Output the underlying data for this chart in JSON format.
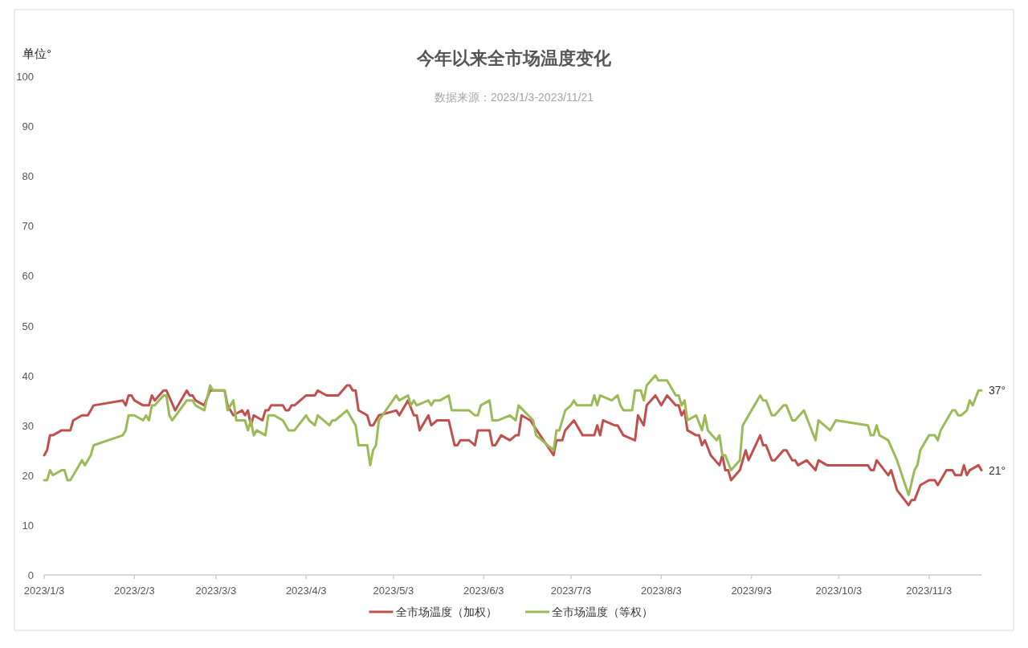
{
  "chart_data": {
    "type": "line",
    "title": "今年以来全市场温度变化",
    "subtitle": "数据来源：2023/1/3-2023/11/21",
    "ylabel": "单位°",
    "xlim": [
      "2023-01-03",
      "2023-11-21"
    ],
    "xticks": [
      {
        "value": "2023-01-03",
        "label": "2023/1/3"
      },
      {
        "value": "2023-02-03",
        "label": "2023/2/3"
      },
      {
        "value": "2023-03-03",
        "label": "2023/3/3"
      },
      {
        "value": "2023-04-03",
        "label": "2023/4/3"
      },
      {
        "value": "2023-05-03",
        "label": "2023/5/3"
      },
      {
        "value": "2023-06-03",
        "label": "2023/6/3"
      },
      {
        "value": "2023-07-03",
        "label": "2023/7/3"
      },
      {
        "value": "2023-08-03",
        "label": "2023/8/3"
      },
      {
        "value": "2023-09-03",
        "label": "2023/9/3"
      },
      {
        "value": "2023-10-03",
        "label": "2023/10/3"
      },
      {
        "value": "2023-11-03",
        "label": "2023/11/3"
      }
    ],
    "ylim": [
      0,
      100
    ],
    "yticks": [
      0,
      10,
      20,
      30,
      40,
      50,
      60,
      70,
      80,
      90,
      100
    ],
    "legend": "bottom",
    "annotations": [
      {
        "text": "37°",
        "x": "2023-11-21",
        "y": 37
      },
      {
        "text": "21°",
        "x": "2023-11-21",
        "y": 21
      }
    ],
    "series": [
      {
        "name": "全市场温度（加权）",
        "color": "#c0504d",
        "x": [
          "2023-01-03",
          "2023-01-04",
          "2023-01-05",
          "2023-01-06",
          "2023-01-09",
          "2023-01-12",
          "2023-01-13",
          "2023-01-16",
          "2023-01-18",
          "2023-01-20",
          "2023-01-30",
          "2023-01-31",
          "2023-02-01",
          "2023-02-02",
          "2023-02-03",
          "2023-02-06",
          "2023-02-08",
          "2023-02-09",
          "2023-02-10",
          "2023-02-13",
          "2023-02-14",
          "2023-02-17",
          "2023-02-21",
          "2023-02-22",
          "2023-02-23",
          "2023-02-24",
          "2023-02-27",
          "2023-03-01",
          "2023-03-06",
          "2023-03-07",
          "2023-03-09",
          "2023-03-12",
          "2023-03-13",
          "2023-03-14",
          "2023-03-15",
          "2023-03-16",
          "2023-03-19",
          "2023-03-20",
          "2023-03-21",
          "2023-03-22",
          "2023-03-26",
          "2023-03-27",
          "2023-03-28",
          "2023-03-29",
          "2023-03-30",
          "2023-04-03",
          "2023-04-06",
          "2023-04-07",
          "2023-04-10",
          "2023-04-14",
          "2023-04-17",
          "2023-04-18",
          "2023-04-19",
          "2023-04-20",
          "2023-04-21",
          "2023-04-24",
          "2023-04-25",
          "2023-04-26",
          "2023-04-28",
          "2023-05-04",
          "2023-05-05",
          "2023-05-08",
          "2023-05-10",
          "2023-05-11",
          "2023-05-12",
          "2023-05-15",
          "2023-05-16",
          "2023-05-18",
          "2023-05-22",
          "2023-05-24",
          "2023-05-25",
          "2023-05-26",
          "2023-05-29",
          "2023-05-31",
          "2023-06-01",
          "2023-06-05",
          "2023-06-06",
          "2023-06-07",
          "2023-06-09",
          "2023-06-12",
          "2023-06-14",
          "2023-06-15",
          "2023-06-16",
          "2023-06-19",
          "2023-06-27",
          "2023-06-28",
          "2023-06-30",
          "2023-07-01",
          "2023-07-04",
          "2023-07-07",
          "2023-07-11",
          "2023-07-12",
          "2023-07-13",
          "2023-07-14",
          "2023-07-18",
          "2023-07-19",
          "2023-07-21",
          "2023-07-25",
          "2023-07-26",
          "2023-07-28",
          "2023-07-29",
          "2023-08-01",
          "2023-08-03",
          "2023-08-05",
          "2023-08-08",
          "2023-08-09",
          "2023-08-10",
          "2023-08-11",
          "2023-08-12",
          "2023-08-15",
          "2023-08-16",
          "2023-08-17",
          "2023-08-18",
          "2023-08-20",
          "2023-08-23",
          "2023-08-24",
          "2023-08-25",
          "2023-08-26",
          "2023-08-27",
          "2023-08-30",
          "2023-09-01",
          "2023-09-02",
          "2023-09-06",
          "2023-09-07",
          "2023-09-08",
          "2023-09-10",
          "2023-09-11",
          "2023-09-14",
          "2023-09-15",
          "2023-09-17",
          "2023-09-18",
          "2023-09-19",
          "2023-09-22",
          "2023-09-25",
          "2023-09-26",
          "2023-09-29",
          "2023-10-13",
          "2023-10-14",
          "2023-10-15",
          "2023-10-16",
          "2023-10-20",
          "2023-10-21",
          "2023-10-23",
          "2023-10-27",
          "2023-10-28",
          "2023-10-29",
          "2023-10-31",
          "2023-11-03",
          "2023-11-05",
          "2023-11-06",
          "2023-11-07",
          "2023-11-09",
          "2023-11-11",
          "2023-11-12",
          "2023-11-14",
          "2023-11-15",
          "2023-11-16",
          "2023-11-17",
          "2023-11-20",
          "2023-11-21"
        ],
        "values": [
          24,
          25,
          28,
          28,
          29,
          29,
          31,
          32,
          32,
          34,
          35,
          34,
          36,
          36,
          35,
          34,
          34,
          36,
          35,
          37,
          37,
          33,
          37,
          36,
          36,
          35,
          34,
          37,
          37,
          34,
          32,
          33,
          32,
          33,
          30,
          32,
          31,
          33,
          33,
          34,
          34,
          33,
          33,
          34,
          34,
          36,
          36,
          37,
          36,
          36,
          38,
          38,
          37,
          37,
          33,
          32,
          30,
          30,
          32,
          33,
          32,
          35,
          32,
          32,
          29,
          32,
          30,
          31,
          31,
          26,
          26,
          27,
          27,
          26,
          29,
          29,
          26,
          26,
          28,
          27,
          28,
          28,
          32,
          31,
          24,
          27,
          27,
          29,
          31,
          28,
          28,
          30,
          28,
          31,
          30,
          30,
          28,
          27,
          32,
          30,
          34,
          36,
          34,
          36,
          34,
          34,
          32,
          33,
          29,
          28,
          28,
          26,
          27,
          24,
          22,
          24,
          21,
          21,
          19,
          21,
          25,
          23,
          28,
          26,
          26,
          23,
          23,
          25,
          25,
          23,
          23,
          22,
          23,
          21,
          23,
          22,
          22,
          21,
          21,
          23,
          20,
          21,
          17,
          14,
          15,
          15,
          18,
          19,
          19,
          18,
          19,
          21,
          21,
          20,
          20,
          22,
          20,
          21,
          22,
          21
        ]
      },
      {
        "name": "全市场温度（等权）",
        "color": "#9bbb59",
        "x": [
          "2023-01-03",
          "2023-01-04",
          "2023-01-05",
          "2023-01-06",
          "2023-01-09",
          "2023-01-10",
          "2023-01-11",
          "2023-01-12",
          "2023-01-16",
          "2023-01-17",
          "2023-01-19",
          "2023-01-20",
          "2023-01-30",
          "2023-01-31",
          "2023-02-01",
          "2023-02-03",
          "2023-02-06",
          "2023-02-07",
          "2023-02-08",
          "2023-02-09",
          "2023-02-10",
          "2023-02-13",
          "2023-02-14",
          "2023-02-15",
          "2023-02-16",
          "2023-02-21",
          "2023-02-23",
          "2023-02-24",
          "2023-02-27",
          "2023-03-01",
          "2023-03-02",
          "2023-03-06",
          "2023-03-07",
          "2023-03-09",
          "2023-03-10",
          "2023-03-13",
          "2023-03-14",
          "2023-03-15",
          "2023-03-16",
          "2023-03-17",
          "2023-03-20",
          "2023-03-21",
          "2023-03-23",
          "2023-03-26",
          "2023-03-28",
          "2023-03-30",
          "2023-04-03",
          "2023-04-04",
          "2023-04-06",
          "2023-04-07",
          "2023-04-11",
          "2023-04-12",
          "2023-04-13",
          "2023-04-17",
          "2023-04-20",
          "2023-04-21",
          "2023-04-24",
          "2023-04-25",
          "2023-04-26",
          "2023-04-27",
          "2023-04-28",
          "2023-05-04",
          "2023-05-05",
          "2023-05-08",
          "2023-05-09",
          "2023-05-10",
          "2023-05-11",
          "2023-05-15",
          "2023-05-16",
          "2023-05-17",
          "2023-05-19",
          "2023-05-22",
          "2023-05-23",
          "2023-05-29",
          "2023-05-31",
          "2023-06-01",
          "2023-06-02",
          "2023-06-05",
          "2023-06-06",
          "2023-06-08",
          "2023-06-12",
          "2023-06-14",
          "2023-06-15",
          "2023-06-20",
          "2023-06-21",
          "2023-06-27",
          "2023-06-28",
          "2023-06-29",
          "2023-07-01",
          "2023-07-03",
          "2023-07-04",
          "2023-07-05",
          "2023-07-10",
          "2023-07-11",
          "2023-07-12",
          "2023-07-13",
          "2023-07-17",
          "2023-07-19",
          "2023-07-20",
          "2023-07-21",
          "2023-07-24",
          "2023-07-25",
          "2023-07-27",
          "2023-07-28",
          "2023-07-29",
          "2023-08-01",
          "2023-08-02",
          "2023-08-05",
          "2023-08-08",
          "2023-08-09",
          "2023-08-10",
          "2023-08-11",
          "2023-08-12",
          "2023-08-15",
          "2023-08-17",
          "2023-08-18",
          "2023-08-19",
          "2023-08-22",
          "2023-08-23",
          "2023-08-24",
          "2023-08-25",
          "2023-08-27",
          "2023-08-30",
          "2023-08-31",
          "2023-09-06",
          "2023-09-07",
          "2023-09-08",
          "2023-09-10",
          "2023-09-11",
          "2023-09-14",
          "2023-09-15",
          "2023-09-17",
          "2023-09-18",
          "2023-09-21",
          "2023-09-25",
          "2023-09-26",
          "2023-09-28",
          "2023-09-30",
          "2023-10-02",
          "2023-10-13",
          "2023-10-14",
          "2023-10-15",
          "2023-10-16",
          "2023-10-17",
          "2023-10-20",
          "2023-10-23",
          "2023-10-27",
          "2023-10-29",
          "2023-10-30",
          "2023-10-31",
          "2023-11-03",
          "2023-11-05",
          "2023-11-06",
          "2023-11-07",
          "2023-11-11",
          "2023-11-12",
          "2023-11-13",
          "2023-11-14",
          "2023-11-16",
          "2023-11-17",
          "2023-11-18",
          "2023-11-20",
          "2023-11-21"
        ],
        "values": [
          19,
          19,
          21,
          20,
          21,
          21,
          19,
          19,
          23,
          22,
          24,
          26,
          28,
          29,
          32,
          32,
          31,
          32,
          31,
          34,
          34,
          36,
          36,
          32,
          31,
          35,
          35,
          34,
          33,
          38,
          37,
          37,
          33,
          35,
          31,
          31,
          29,
          31,
          28,
          29,
          28,
          32,
          32,
          31,
          29,
          29,
          32,
          31,
          30,
          32,
          30,
          31,
          31,
          33,
          30,
          26,
          26,
          22,
          25,
          26,
          31,
          36,
          35,
          36,
          34,
          35,
          34,
          35,
          34,
          35,
          35,
          36,
          33,
          33,
          32,
          32,
          34,
          35,
          31,
          31,
          32,
          31,
          34,
          31,
          28,
          25,
          29,
          29,
          33,
          34,
          35,
          34,
          34,
          36,
          34,
          36,
          35,
          36,
          34,
          33,
          33,
          37,
          37,
          35,
          38,
          40,
          39,
          39,
          36,
          36,
          34,
          35,
          31,
          32,
          29,
          32,
          29,
          27,
          28,
          24,
          24,
          21,
          23,
          30,
          36,
          35,
          35,
          32,
          32,
          34,
          34,
          31,
          31,
          33,
          27,
          31,
          30,
          29,
          31,
          30,
          28,
          28,
          30,
          28,
          27,
          23,
          16,
          21,
          22,
          25,
          28,
          28,
          27,
          29,
          33,
          33,
          32,
          32,
          33,
          35,
          34,
          37,
          37
        ]
      }
    ]
  }
}
